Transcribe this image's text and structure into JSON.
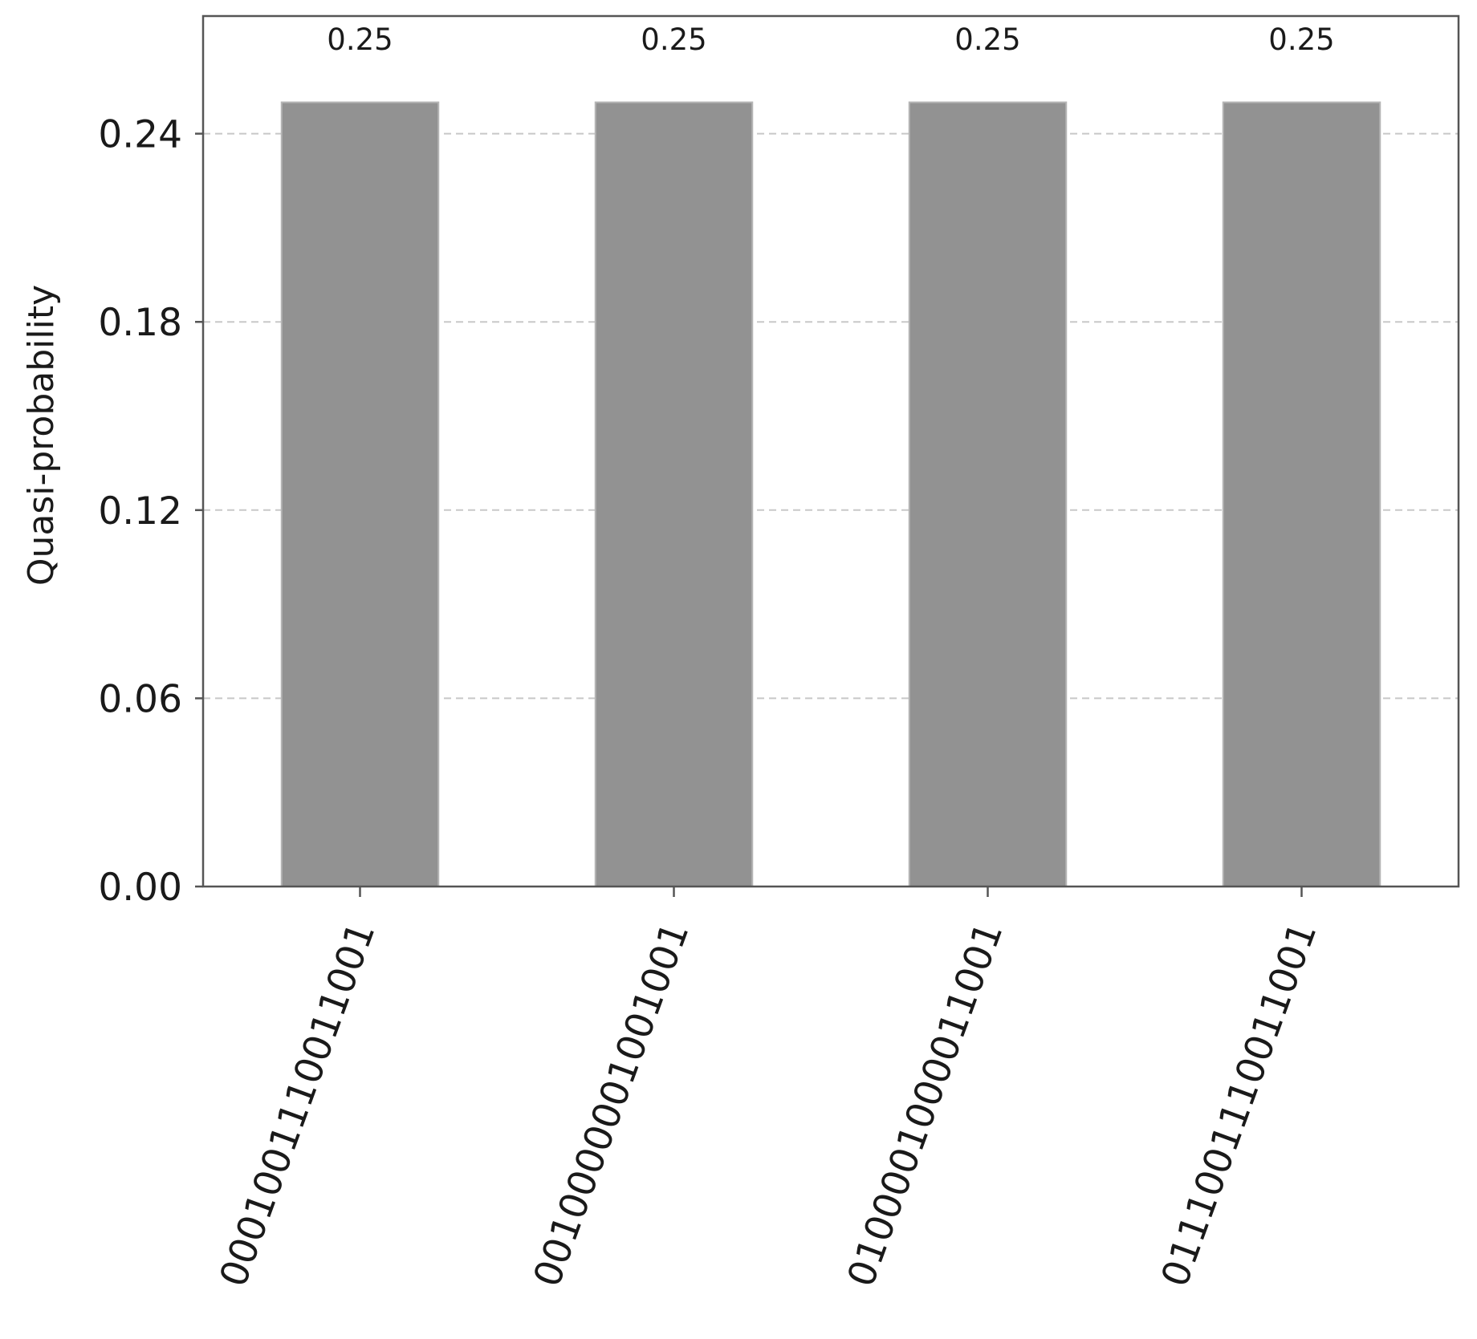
{
  "chart_data": {
    "type": "bar",
    "title": "",
    "xlabel": "",
    "ylabel": "Quasi-probability",
    "categories": [
      "0001001110011001",
      "0010000001001001",
      "0100001000011001",
      "0111001110011001"
    ],
    "values": [
      0.25,
      0.25,
      0.25,
      0.25
    ],
    "data_labels": [
      "0.25",
      "0.25",
      "0.25",
      "0.25"
    ],
    "yticks": [
      "0.00",
      "0.06",
      "0.12",
      "0.18",
      "0.24"
    ],
    "ylim": [
      0,
      0.2775
    ],
    "grid": "horizontal-dashed",
    "legend": "none",
    "bar_color": "#929292",
    "xtick_rotation_deg": 70
  }
}
